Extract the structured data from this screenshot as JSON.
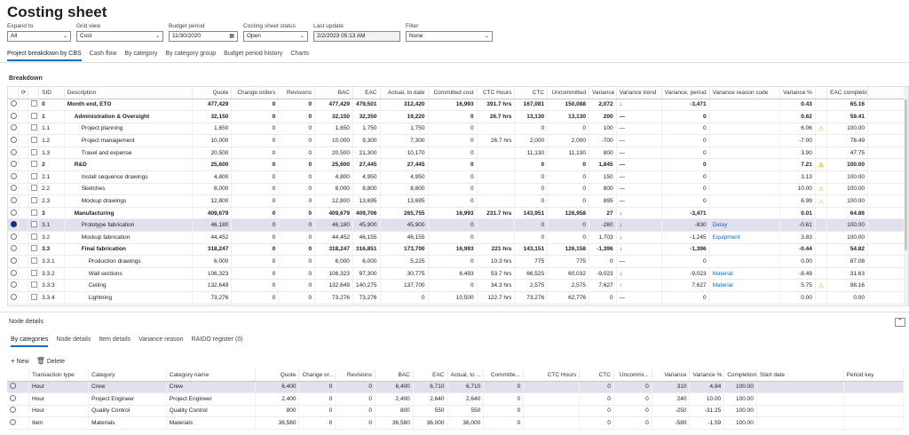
{
  "title": "Costing sheet",
  "filters": [
    {
      "label": "Expand to",
      "value": "All",
      "readonly": false,
      "icon": "chevron-down-icon"
    },
    {
      "label": "Grid view",
      "value": "Cost",
      "readonly": false,
      "icon": "chevron-down-icon"
    },
    {
      "label": "Budget period",
      "value": "11/30/2020",
      "readonly": false,
      "icon": "calendar-icon"
    },
    {
      "label": "Costing sheet status",
      "value": "Open",
      "readonly": false,
      "icon": "chevron-down-icon"
    },
    {
      "label": "Last update",
      "value": "2/2/2023 05:13 AM",
      "readonly": true,
      "icon": ""
    },
    {
      "label": "Filter",
      "value": "None",
      "readonly": false,
      "icon": "chevron-down-icon"
    }
  ],
  "tabs": [
    "Project breakdown by CBS",
    "Cash flow",
    "By category",
    "By category group",
    "Budget period history",
    "Charts"
  ],
  "breakdown": {
    "title": "Breakdown",
    "columns": [
      "SID",
      "Description",
      "Quote",
      "Change orders",
      "Revisions",
      "BAC",
      "EAC",
      "Actual, to date",
      "Committed cost",
      "CTC Hours",
      "CTC",
      "Uncommitted",
      "Variance",
      "Variance trend",
      "Variance, period",
      "Variance reason code",
      "Variance %",
      "EAC completion"
    ],
    "rows": [
      {
        "sid": "0",
        "desc": "Month end, ETO",
        "quote": "477,429",
        "co": "0",
        "rev": "0",
        "bac": "477,429",
        "eac": "479,501",
        "act": "312,420",
        "comm": "16,993",
        "ctch": "391.7 hrs",
        "ctc": "167,081",
        "unc": "150,088",
        "var": "2,072",
        "trend": "↓",
        "varp": "-3,471",
        "reason": "",
        "varpct": "0.43",
        "warn": "",
        "eacc": "65.16",
        "bold": true,
        "indent": 0,
        "sel": false
      },
      {
        "sid": "1",
        "desc": "Administration & Oversight",
        "quote": "32,150",
        "co": "0",
        "rev": "0",
        "bac": "32,150",
        "eac": "32,350",
        "act": "19,220",
        "comm": "0",
        "ctch": "26.7 hrs",
        "ctc": "13,130",
        "unc": "13,130",
        "var": "200",
        "trend": "—",
        "varp": "0",
        "reason": "",
        "varpct": "0.62",
        "warn": "",
        "eacc": "59.41",
        "bold": true,
        "indent": 1,
        "sel": false
      },
      {
        "sid": "1.1",
        "desc": "Project planning",
        "quote": "1,650",
        "co": "0",
        "rev": "0",
        "bac": "1,650",
        "eac": "1,750",
        "act": "1,750",
        "comm": "0",
        "ctch": "",
        "ctc": "0",
        "unc": "0",
        "var": "100",
        "trend": "—",
        "varp": "0",
        "reason": "",
        "varpct": "6.06",
        "warn": "⚠",
        "eacc": "100.00",
        "bold": false,
        "indent": 2,
        "sel": false
      },
      {
        "sid": "1.2",
        "desc": "Project management",
        "quote": "10,000",
        "co": "0",
        "rev": "0",
        "bac": "10,000",
        "eac": "9,300",
        "act": "7,300",
        "comm": "0",
        "ctch": "26.7 hrs",
        "ctc": "2,000",
        "unc": "2,000",
        "var": "-700",
        "trend": "—",
        "varp": "0",
        "reason": "",
        "varpct": "-7.00",
        "warn": "",
        "eacc": "78.49",
        "bold": false,
        "indent": 2,
        "sel": false
      },
      {
        "sid": "1.3",
        "desc": "Travel and expense",
        "quote": "20,500",
        "co": "0",
        "rev": "0",
        "bac": "20,500",
        "eac": "21,300",
        "act": "10,170",
        "comm": "0",
        "ctch": "",
        "ctc": "11,130",
        "unc": "11,130",
        "var": "800",
        "trend": "—",
        "varp": "0",
        "reason": "",
        "varpct": "3.90",
        "warn": "",
        "eacc": "47.75",
        "bold": false,
        "indent": 2,
        "sel": false
      },
      {
        "sid": "2",
        "desc": "R&D",
        "quote": "25,600",
        "co": "0",
        "rev": "0",
        "bac": "25,600",
        "eac": "27,445",
        "act": "27,445",
        "comm": "0",
        "ctch": "",
        "ctc": "0",
        "unc": "0",
        "var": "1,845",
        "trend": "—",
        "varp": "0",
        "reason": "",
        "varpct": "7.21",
        "warn": "⚠",
        "eacc": "100.00",
        "bold": true,
        "indent": 1,
        "sel": false
      },
      {
        "sid": "2.1",
        "desc": "Install sequence drawings",
        "quote": "4,800",
        "co": "0",
        "rev": "0",
        "bac": "4,800",
        "eac": "4,950",
        "act": "4,950",
        "comm": "0",
        "ctch": "",
        "ctc": "0",
        "unc": "0",
        "var": "150",
        "trend": "—",
        "varp": "0",
        "reason": "",
        "varpct": "3.13",
        "warn": "",
        "eacc": "100.00",
        "bold": false,
        "indent": 2,
        "sel": false
      },
      {
        "sid": "2.2",
        "desc": "Sketches",
        "quote": "8,000",
        "co": "0",
        "rev": "0",
        "bac": "8,000",
        "eac": "8,800",
        "act": "8,800",
        "comm": "0",
        "ctch": "",
        "ctc": "0",
        "unc": "0",
        "var": "800",
        "trend": "—",
        "varp": "0",
        "reason": "",
        "varpct": "10.00",
        "warn": "⚠",
        "eacc": "100.00",
        "bold": false,
        "indent": 2,
        "sel": false
      },
      {
        "sid": "2.3",
        "desc": "Mockup drawings",
        "quote": "12,800",
        "co": "0",
        "rev": "0",
        "bac": "12,800",
        "eac": "13,695",
        "act": "13,695",
        "comm": "0",
        "ctch": "",
        "ctc": "0",
        "unc": "0",
        "var": "895",
        "trend": "—",
        "varp": "0",
        "reason": "",
        "varpct": "6.99",
        "warn": "⚠",
        "eacc": "100.00",
        "bold": false,
        "indent": 2,
        "sel": false
      },
      {
        "sid": "3",
        "desc": "Manufacturing",
        "quote": "409,679",
        "co": "0",
        "rev": "0",
        "bac": "409,679",
        "eac": "409,706",
        "act": "265,755",
        "comm": "16,993",
        "ctch": "231.7 hrs",
        "ctc": "143,951",
        "unc": "126,958",
        "var": "27",
        "trend": "↓",
        "varp": "-3,471",
        "reason": "",
        "varpct": "0.01",
        "warn": "",
        "eacc": "64.86",
        "bold": true,
        "indent": 1,
        "sel": false
      },
      {
        "sid": "3.1",
        "desc": "Prototype fabrication",
        "quote": "46,180",
        "co": "0",
        "rev": "0",
        "bac": "46,180",
        "eac": "45,900",
        "act": "45,900",
        "comm": "0",
        "ctch": "",
        "ctc": "0",
        "unc": "0",
        "var": "-280",
        "trend": "↓",
        "varp": "-830",
        "reason": "Delay",
        "varpct": "-0.61",
        "warn": "",
        "eacc": "100.00",
        "bold": false,
        "indent": 2,
        "sel": true
      },
      {
        "sid": "3.2",
        "desc": "Mockup fabrication",
        "quote": "44,452",
        "co": "0",
        "rev": "0",
        "bac": "44,452",
        "eac": "46,155",
        "act": "46,155",
        "comm": "0",
        "ctch": "",
        "ctc": "0",
        "unc": "0",
        "var": "1,703",
        "trend": "↓",
        "varp": "-1,245",
        "reason": "Equipment",
        "varpct": "3.83",
        "warn": "",
        "eacc": "100.00",
        "bold": false,
        "indent": 2,
        "sel": false
      },
      {
        "sid": "3.3",
        "desc": "Final fabrication",
        "quote": "318,247",
        "co": "0",
        "rev": "0",
        "bac": "318,247",
        "eac": "316,851",
        "act": "173,700",
        "comm": "16,993",
        "ctch": "221 hrs",
        "ctc": "143,151",
        "unc": "126,158",
        "var": "-1,396",
        "trend": "↓",
        "varp": "-1,396",
        "reason": "",
        "varpct": "-0.44",
        "warn": "",
        "eacc": "54.82",
        "bold": true,
        "indent": 2,
        "sel": false
      },
      {
        "sid": "3.3.1",
        "desc": "Production drawings",
        "quote": "6,000",
        "co": "0",
        "rev": "0",
        "bac": "6,000",
        "eac": "6,000",
        "act": "5,225",
        "comm": "0",
        "ctch": "10.3 hrs",
        "ctc": "775",
        "unc": "775",
        "var": "0",
        "trend": "—",
        "varp": "0",
        "reason": "",
        "varpct": "0.00",
        "warn": "",
        "eacc": "87.08",
        "bold": false,
        "indent": 3,
        "sel": false
      },
      {
        "sid": "3.3.2",
        "desc": "Wall sections",
        "quote": "106,323",
        "co": "0",
        "rev": "0",
        "bac": "106,323",
        "eac": "97,300",
        "act": "30,775",
        "comm": "6,493",
        "ctch": "53.7 hrs",
        "ctc": "66,525",
        "unc": "60,032",
        "var": "-9,023",
        "trend": "↓",
        "varp": "-9,023",
        "reason": "Material",
        "varpct": "-8.49",
        "warn": "",
        "eacc": "31.63",
        "bold": false,
        "indent": 3,
        "sel": false
      },
      {
        "sid": "3.3.3",
        "desc": "Ceiling",
        "quote": "132,649",
        "co": "0",
        "rev": "0",
        "bac": "132,649",
        "eac": "140,275",
        "act": "137,700",
        "comm": "0",
        "ctch": "34.3 hrs",
        "ctc": "2,575",
        "unc": "2,575",
        "var": "7,627",
        "trend": "↑",
        "varp": "7,627",
        "reason": "Material",
        "varpct": "5.75",
        "warn": "⚠",
        "eacc": "98.16",
        "bold": false,
        "indent": 3,
        "sel": false
      },
      {
        "sid": "3.3.4",
        "desc": "Lightning",
        "quote": "73,276",
        "co": "0",
        "rev": "0",
        "bac": "73,276",
        "eac": "73,276",
        "act": "0",
        "comm": "10,500",
        "ctch": "122.7 hrs",
        "ctc": "73,276",
        "unc": "62,776",
        "var": "0",
        "trend": "—",
        "varp": "0",
        "reason": "",
        "varpct": "0.00",
        "warn": "",
        "eacc": "0.00",
        "bold": false,
        "indent": 3,
        "sel": false
      }
    ]
  },
  "node_details": {
    "title": "Node details",
    "tabs": [
      "By categories",
      "Node details",
      "Item details",
      "Variance reason",
      "RAIDO register (0)"
    ],
    "new_label": "New",
    "delete_label": "Delete",
    "columns": [
      "Transaction type",
      "Category",
      "Category name",
      "Quote",
      "Change or...",
      "Revisions",
      "BAC",
      "EAC",
      "Actual, to ...",
      "Committe...",
      "CTC Hours",
      "CTC",
      "Uncommi...",
      "Variance",
      "Variance %",
      "Completion",
      "Start date",
      "Period key"
    ],
    "rows": [
      {
        "type": "Hour",
        "cat": "Crew",
        "catname": "Crew",
        "quote": "6,400",
        "co": "0",
        "rev": "0",
        "bac": "6,400",
        "eac": "6,710",
        "act": "6,710",
        "comm": "0",
        "ctch": "",
        "ctc": "0",
        "unc": "0",
        "var": "310",
        "varpct": "4.84",
        "comp": "100.00",
        "start": "",
        "period": "",
        "sel": true
      },
      {
        "type": "Hour",
        "cat": "Project Engineer",
        "catname": "Project Engineer",
        "quote": "2,400",
        "co": "0",
        "rev": "0",
        "bac": "2,400",
        "eac": "2,640",
        "act": "2,640",
        "comm": "0",
        "ctch": "",
        "ctc": "0",
        "unc": "0",
        "var": "240",
        "varpct": "10.00",
        "comp": "100.00",
        "start": "",
        "period": "",
        "sel": false
      },
      {
        "type": "Hour",
        "cat": "Quality Control",
        "catname": "Quality Control",
        "quote": "800",
        "co": "0",
        "rev": "0",
        "bac": "800",
        "eac": "550",
        "act": "550",
        "comm": "0",
        "ctch": "",
        "ctc": "0",
        "unc": "0",
        "var": "-250",
        "varpct": "-31.25",
        "comp": "100.00",
        "start": "",
        "period": "",
        "sel": false
      },
      {
        "type": "Item",
        "cat": "Materials",
        "catname": "Materials",
        "quote": "36,580",
        "co": "0",
        "rev": "0",
        "bac": "36,580",
        "eac": "36,000",
        "act": "36,000",
        "comm": "0",
        "ctch": "",
        "ctc": "0",
        "unc": "0",
        "var": "-580",
        "varpct": "-1.59",
        "comp": "100.00",
        "start": "",
        "period": "",
        "sel": false
      }
    ]
  }
}
